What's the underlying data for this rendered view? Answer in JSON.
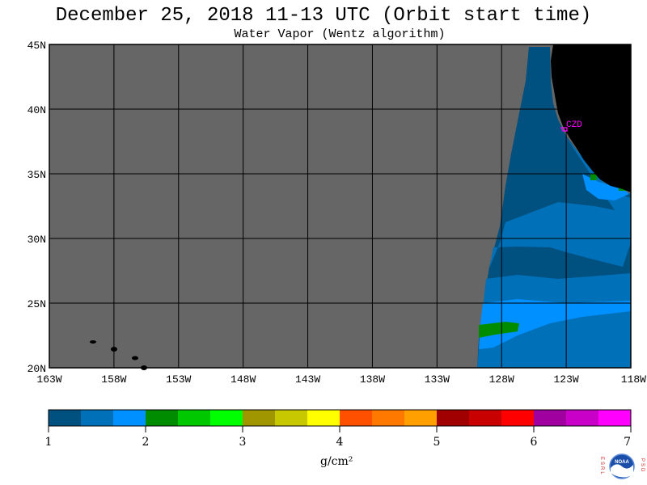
{
  "header": {
    "title": "December 25, 2018  11-13 UTC  (Orbit start time)",
    "subtitle": "Water Vapor (Wentz algorithm)"
  },
  "map": {
    "lat_labels": [
      "45N",
      "40N",
      "35N",
      "30N",
      "25N",
      "20N"
    ],
    "lon_labels": [
      "163W",
      "158W",
      "153W",
      "148W",
      "143W",
      "138W",
      "133W",
      "128W",
      "123W",
      "118W"
    ],
    "station_label": "CZD",
    "colors": {
      "no_data": "#666666",
      "land": "#000000",
      "grid": "#000000",
      "station": "#ff00ff"
    }
  },
  "colorbar": {
    "tick_labels": [
      "1",
      "2",
      "3",
      "4",
      "5",
      "6",
      "7"
    ],
    "units": "g/cm²",
    "colors": [
      "#005080",
      "#0070b8",
      "#0090ff",
      "#008c00",
      "#00c800",
      "#00ff00",
      "#a09600",
      "#c8c800",
      "#ffff00",
      "#ff5000",
      "#ff7800",
      "#ffa000",
      "#a00000",
      "#c80000",
      "#ff0000",
      "#a000a0",
      "#c800c8",
      "#ff00ff"
    ]
  },
  "logo": {
    "left_letters": "ESRL",
    "right_letters": "PSD",
    "center_text": "NOAA"
  }
}
